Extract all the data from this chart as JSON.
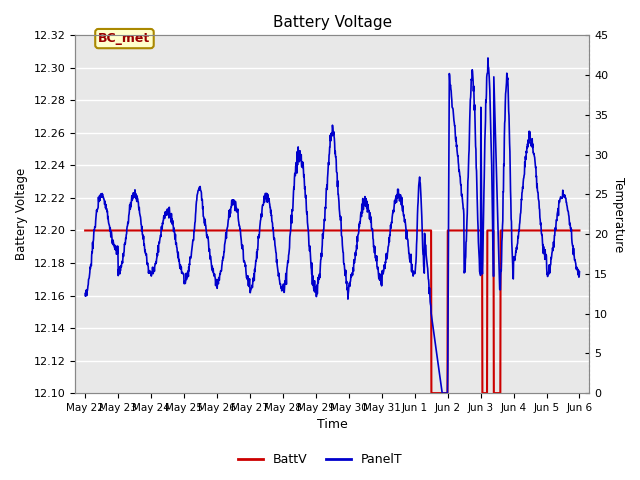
{
  "title": "Battery Voltage",
  "xlabel": "Time",
  "ylabel_left": "Battery Voltage",
  "ylabel_right": "Temperature",
  "legend_labels": [
    "BattV",
    "PanelT"
  ],
  "legend_colors": [
    "#cc0000",
    "#0000cc"
  ],
  "annotation_text": "BC_met",
  "annotation_bg": "#ffffcc",
  "annotation_border": "#aa8800",
  "annotation_text_color": "#990000",
  "left_ylim": [
    12.1,
    12.32
  ],
  "right_ylim": [
    0,
    45
  ],
  "left_yticks": [
    12.1,
    12.12,
    12.14,
    12.16,
    12.18,
    12.2,
    12.22,
    12.24,
    12.26,
    12.28,
    12.3,
    12.32
  ],
  "right_yticks": [
    0,
    5,
    10,
    15,
    20,
    25,
    30,
    35,
    40,
    45
  ],
  "fig_bg_color": "#ffffff",
  "plot_bg_color": "#e8e8e8",
  "grid_color": "#ffffff",
  "x_tick_labels": [
    "May 22",
    "May 23",
    "May 24",
    "May 25",
    "May 26",
    "May 27",
    "May 28",
    "May 29",
    "May 30",
    "May 31",
    "Jun 1",
    "Jun 2",
    "Jun 3",
    "Jun 4",
    "Jun 5",
    "Jun 6"
  ],
  "battv_level": 12.2,
  "battv_color": "#cc0000",
  "panelT_color": "#0000cc",
  "linewidth_batt": 1.5,
  "linewidth_panel": 1.2
}
